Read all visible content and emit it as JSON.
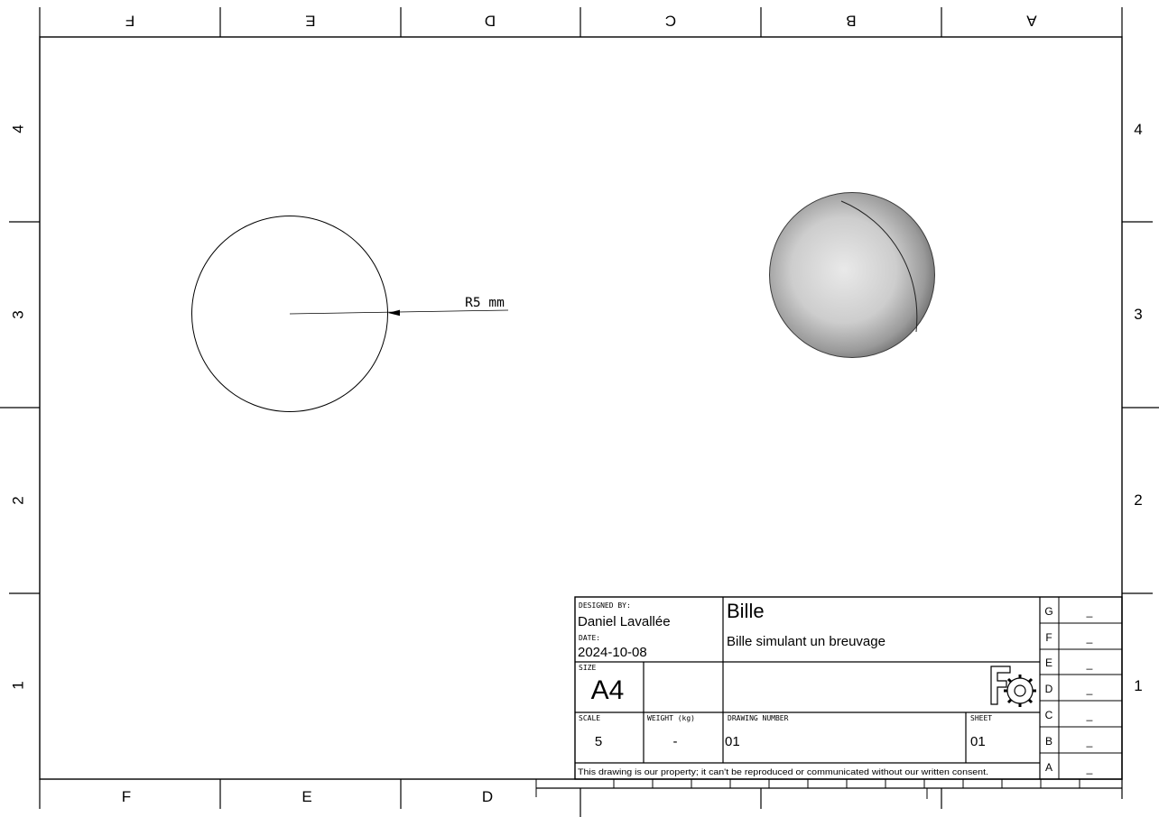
{
  "sheet": {
    "columns_top": [
      "F",
      "E",
      "D",
      "C",
      "B",
      "A"
    ],
    "columns_bottom": [
      "F",
      "E",
      "D"
    ],
    "rows": [
      "4",
      "3",
      "2",
      "1"
    ]
  },
  "views": {
    "front_view": {
      "dimension_label": "R5 mm"
    },
    "iso_view": {
      "shape": "sphere"
    }
  },
  "title_block": {
    "designed_by_label": "DESIGNED BY:",
    "designed_by": "Daniel Lavallée",
    "date_label": "DATE:",
    "date": "2024-10-08",
    "title": "Bille",
    "subtitle": "Bille simulant un breuvage",
    "size_label": "SIZE",
    "size": "A4",
    "scale_label": "SCALE",
    "scale": "5",
    "weight_label": "WEIGHT (kg)",
    "weight": "-",
    "drawing_number_label": "DRAWING NUMBER",
    "drawing_number": "01",
    "sheet_label": "SHEET",
    "sheet": "01",
    "disclaimer": "This drawing is our property; it can't be reproduced or communicated without our written consent.",
    "logo_icon": "freecad-gear-logo"
  },
  "revisions": [
    {
      "letter": "G",
      "value": "_"
    },
    {
      "letter": "F",
      "value": "_"
    },
    {
      "letter": "E",
      "value": "_"
    },
    {
      "letter": "D",
      "value": "_"
    },
    {
      "letter": "C",
      "value": "_"
    },
    {
      "letter": "B",
      "value": "_"
    },
    {
      "letter": "A",
      "value": "_"
    }
  ]
}
